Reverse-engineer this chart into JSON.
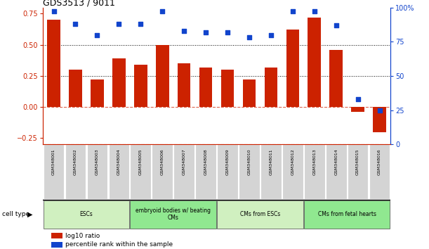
{
  "title": "GDS3513 / 9011",
  "samples": [
    "GSM348001",
    "GSM348002",
    "GSM348003",
    "GSM348004",
    "GSM348005",
    "GSM348006",
    "GSM348007",
    "GSM348008",
    "GSM348009",
    "GSM348010",
    "GSM348011",
    "GSM348012",
    "GSM348013",
    "GSM348014",
    "GSM348015",
    "GSM348016"
  ],
  "log10_ratio": [
    0.7,
    0.3,
    0.22,
    0.39,
    0.34,
    0.5,
    0.35,
    0.32,
    0.3,
    0.22,
    0.32,
    0.62,
    0.72,
    0.46,
    -0.04,
    -0.2
  ],
  "percentile_rank": [
    97,
    88,
    80,
    88,
    88,
    97,
    83,
    82,
    82,
    78,
    80,
    97,
    97,
    87,
    33,
    25
  ],
  "bar_color": "#cc2200",
  "dot_color": "#1144cc",
  "bg_color": "#ffffff",
  "ylim_left": [
    -0.3,
    0.8
  ],
  "ylim_right": [
    0,
    100
  ],
  "yticks_left": [
    -0.25,
    0.0,
    0.25,
    0.5,
    0.75
  ],
  "yticks_right": [
    0,
    25,
    50,
    75,
    100
  ],
  "hlines_dotted": [
    0.25,
    0.5
  ],
  "cell_type_groups": [
    {
      "label": "ESCs",
      "start": 0,
      "end": 4,
      "color": "#d0f0c0"
    },
    {
      "label": "embryoid bodies w/ beating\nCMs",
      "start": 4,
      "end": 8,
      "color": "#90e890"
    },
    {
      "label": "CMs from ESCs",
      "start": 8,
      "end": 12,
      "color": "#d0f0c0"
    },
    {
      "label": "CMs from fetal hearts",
      "start": 12,
      "end": 16,
      "color": "#90e890"
    }
  ],
  "legend_items": [
    {
      "label": "log10 ratio",
      "color": "#cc2200"
    },
    {
      "label": "percentile rank within the sample",
      "color": "#1144cc"
    }
  ]
}
